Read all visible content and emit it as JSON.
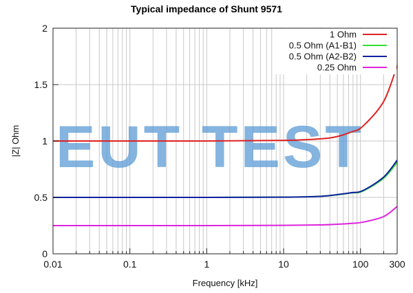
{
  "chart_data": {
    "type": "line",
    "title": "Typical impedance of Shunt 9571",
    "xlabel": "Frequency [kHz]",
    "ylabel": "|Z| Ohm",
    "xscale": "log",
    "xlim": [
      0.01,
      300
    ],
    "ylim": [
      0,
      2
    ],
    "xticks": [
      0.01,
      0.1,
      1,
      10,
      100,
      300
    ],
    "xtick_labels": [
      "0.01",
      "0.1",
      "1",
      "10",
      "100",
      "300"
    ],
    "yticks": [
      0,
      0.5,
      1,
      1.5,
      2
    ],
    "ytick_labels": [
      "0",
      "0.5",
      "1",
      "1.5",
      "2"
    ],
    "grid": true,
    "legend_position": "top-right",
    "watermark": "EUT TEST",
    "series": [
      {
        "name": "1 Ohm",
        "color": "#e02020",
        "x": [
          0.01,
          1,
          10,
          31,
          50,
          76,
          107,
          200,
          300
        ],
        "y": [
          1.0,
          1.0,
          1.005,
          1.02,
          1.04,
          1.08,
          1.13,
          1.35,
          1.67
        ]
      },
      {
        "name": "0.5 Ohm (A1-B1)",
        "color": "#33dd33",
        "x": [
          0.01,
          1,
          10,
          31,
          50,
          76,
          107,
          200,
          300
        ],
        "y": [
          0.5,
          0.5,
          0.502,
          0.51,
          0.523,
          0.54,
          0.555,
          0.67,
          0.81
        ]
      },
      {
        "name": "0.5 Ohm (A2-B2)",
        "color": "#1020a0",
        "x": [
          0.01,
          1,
          10,
          31,
          50,
          76,
          107,
          200,
          300
        ],
        "y": [
          0.5,
          0.5,
          0.502,
          0.51,
          0.525,
          0.542,
          0.56,
          0.68,
          0.83
        ]
      },
      {
        "name": "0.25 Ohm",
        "color": "#dd22dd",
        "x": [
          0.01,
          1,
          10,
          31,
          50,
          76,
          107,
          200,
          300
        ],
        "y": [
          0.25,
          0.25,
          0.252,
          0.256,
          0.262,
          0.27,
          0.28,
          0.33,
          0.42
        ]
      }
    ]
  }
}
